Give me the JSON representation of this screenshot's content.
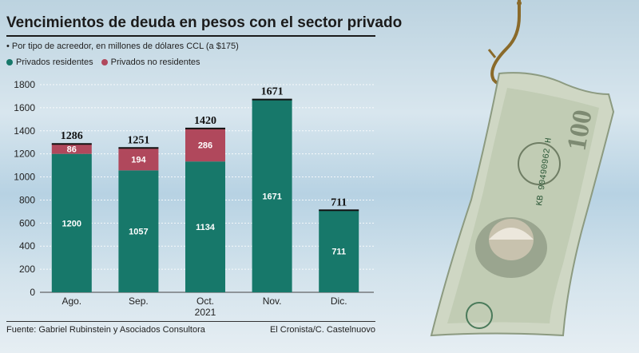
{
  "title": "Vencimientos de deuda en pesos con el sector privado",
  "subtitle": "• Por tipo de acreedor, en millones de dólares CCL (a $175)",
  "legend": [
    {
      "label": "Privados residentes",
      "color": "#17786a"
    },
    {
      "label": "Privados no residentes",
      "color": "#b0485c"
    }
  ],
  "chart_data": {
    "type": "bar",
    "stacked": true,
    "categories": [
      "Ago.",
      "Sep.",
      "Oct.",
      "Nov.",
      "Dic."
    ],
    "category_sublabels": [
      "",
      "",
      "2021",
      "",
      ""
    ],
    "series": [
      {
        "name": "Privados residentes",
        "values": [
          1200,
          1057,
          1134,
          1671,
          711
        ],
        "color": "#17786a"
      },
      {
        "name": "Privados no residentes",
        "values": [
          86,
          194,
          286,
          0,
          0
        ],
        "color": "#b0485c"
      }
    ],
    "totals": [
      1286,
      1251,
      1420,
      1671,
      711
    ],
    "ylim": [
      0,
      1800
    ],
    "yticks": [
      0,
      200,
      400,
      600,
      800,
      1000,
      1200,
      1400,
      1600,
      1800
    ],
    "title": "Vencimientos de deuda en pesos con el sector privado",
    "xlabel": "",
    "ylabel": ""
  },
  "source": "Fuente: Gabriel Rubinstein y Asociados Consultora",
  "credit": "El Cronista/C. Castelnuovo",
  "bill": {
    "serial": "KB 90490962 H",
    "denomination": "100"
  }
}
